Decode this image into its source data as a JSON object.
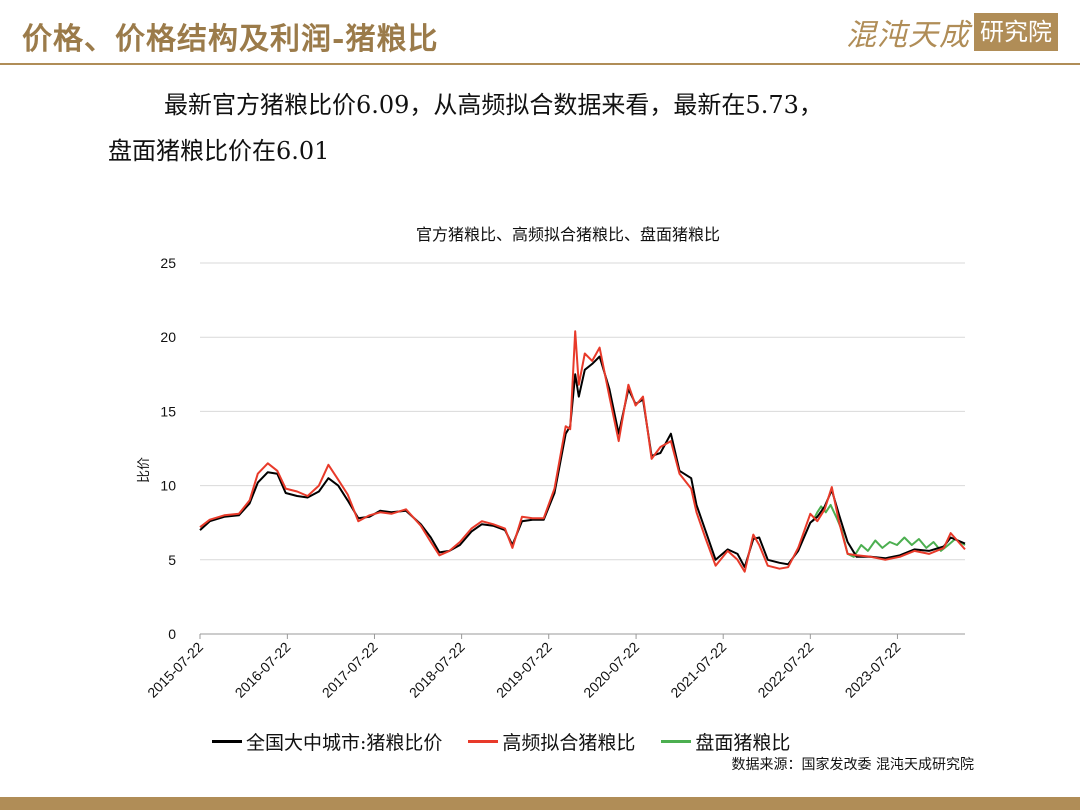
{
  "header": {
    "title": "价格、价格结构及利润-猪粮比",
    "logo_text": "混沌天成",
    "logo_box": "研究院"
  },
  "summary": {
    "line1": "最新官方猪粮比价6.09，从高频拟合数据来看，最新在5.73，",
    "line2": "盘面猪粮比价在6.01"
  },
  "source": "数据来源：国家发改委 混沌天成研究院",
  "colors": {
    "official": "#000000",
    "fitted": "#e83a2a",
    "futures": "#4caf50",
    "accent": "#b08d57"
  },
  "chart_data": {
    "type": "line",
    "title": "官方猪粮比、高频拟合猪粮比、盘面猪粮比",
    "ylabel": "比价",
    "xlabel": "",
    "ylim": [
      0,
      25
    ],
    "yticks": [
      0,
      5,
      10,
      15,
      20,
      25
    ],
    "xticks": [
      "2015-07-22",
      "2016-07-22",
      "2017-07-22",
      "2018-07-22",
      "2019-07-22",
      "2020-07-22",
      "2021-07-22",
      "2022-07-22",
      "2023-07-22"
    ],
    "xrange": [
      "2015-07-22",
      "2024-04-30"
    ],
    "legend_position": "bottom",
    "series": [
      {
        "name": "全国大中城市:猪粮比价",
        "color": "#000000",
        "points": [
          [
            "2015-07-22",
            7.0
          ],
          [
            "2015-09-01",
            7.6
          ],
          [
            "2015-11-01",
            7.9
          ],
          [
            "2016-01-01",
            8.0
          ],
          [
            "2016-02-15",
            8.8
          ],
          [
            "2016-03-20",
            10.2
          ],
          [
            "2016-05-01",
            10.9
          ],
          [
            "2016-06-10",
            10.8
          ],
          [
            "2016-07-15",
            9.5
          ],
          [
            "2016-09-01",
            9.3
          ],
          [
            "2016-10-15",
            9.2
          ],
          [
            "2016-12-01",
            9.6
          ],
          [
            "2017-01-10",
            10.5
          ],
          [
            "2017-02-20",
            10.0
          ],
          [
            "2017-04-01",
            9.0
          ],
          [
            "2017-05-15",
            7.8
          ],
          [
            "2017-07-01",
            7.9
          ],
          [
            "2017-08-15",
            8.3
          ],
          [
            "2017-10-01",
            8.2
          ],
          [
            "2017-12-01",
            8.3
          ],
          [
            "2018-02-01",
            7.4
          ],
          [
            "2018-03-15",
            6.5
          ],
          [
            "2018-04-20",
            5.5
          ],
          [
            "2018-06-01",
            5.6
          ],
          [
            "2018-07-15",
            6.0
          ],
          [
            "2018-09-01",
            6.9
          ],
          [
            "2018-10-15",
            7.4
          ],
          [
            "2018-12-01",
            7.3
          ],
          [
            "2019-01-20",
            7.0
          ],
          [
            "2019-02-20",
            6.0
          ],
          [
            "2019-04-01",
            7.6
          ],
          [
            "2019-05-15",
            7.7
          ],
          [
            "2019-07-01",
            7.7
          ],
          [
            "2019-08-15",
            9.5
          ],
          [
            "2019-10-01",
            13.5
          ],
          [
            "2019-10-20",
            14.0
          ],
          [
            "2019-11-10",
            17.5
          ],
          [
            "2019-11-25",
            16.0
          ],
          [
            "2019-12-20",
            17.8
          ],
          [
            "2020-01-20",
            18.2
          ],
          [
            "2020-02-20",
            18.7
          ],
          [
            "2020-04-01",
            16.5
          ],
          [
            "2020-05-10",
            13.5
          ],
          [
            "2020-06-20",
            16.5
          ],
          [
            "2020-07-20",
            15.5
          ],
          [
            "2020-08-20",
            15.8
          ],
          [
            "2020-09-25",
            12.0
          ],
          [
            "2020-11-01",
            12.2
          ],
          [
            "2020-12-15",
            13.5
          ],
          [
            "2021-01-20",
            11.0
          ],
          [
            "2021-03-10",
            10.5
          ],
          [
            "2021-04-01",
            8.7
          ],
          [
            "2021-05-10",
            6.9
          ],
          [
            "2021-06-20",
            5.0
          ],
          [
            "2021-08-10",
            5.7
          ],
          [
            "2021-09-20",
            5.4
          ],
          [
            "2021-10-20",
            4.5
          ],
          [
            "2021-11-25",
            6.4
          ],
          [
            "2021-12-20",
            6.5
          ],
          [
            "2022-01-25",
            5.0
          ],
          [
            "2022-03-15",
            4.8
          ],
          [
            "2022-04-20",
            4.7
          ],
          [
            "2022-06-01",
            5.6
          ],
          [
            "2022-07-22",
            7.5
          ],
          [
            "2022-08-20",
            7.9
          ],
          [
            "2022-09-20",
            8.6
          ],
          [
            "2022-10-20",
            9.7
          ],
          [
            "2022-11-20",
            8.0
          ],
          [
            "2022-12-25",
            6.2
          ],
          [
            "2023-02-01",
            5.2
          ],
          [
            "2023-04-01",
            5.2
          ],
          [
            "2023-06-01",
            5.1
          ],
          [
            "2023-08-01",
            5.3
          ],
          [
            "2023-10-01",
            5.7
          ],
          [
            "2023-12-01",
            5.6
          ],
          [
            "2024-02-01",
            5.9
          ],
          [
            "2024-03-01",
            6.5
          ],
          [
            "2024-04-30",
            6.1
          ]
        ]
      },
      {
        "name": "高频拟合猪粮比",
        "color": "#e83a2a",
        "points": [
          [
            "2015-07-22",
            7.2
          ],
          [
            "2015-09-01",
            7.7
          ],
          [
            "2015-11-01",
            8.0
          ],
          [
            "2016-01-01",
            8.1
          ],
          [
            "2016-02-15",
            9.0
          ],
          [
            "2016-03-20",
            10.8
          ],
          [
            "2016-05-01",
            11.5
          ],
          [
            "2016-06-10",
            11.0
          ],
          [
            "2016-07-15",
            9.8
          ],
          [
            "2016-09-01",
            9.6
          ],
          [
            "2016-10-15",
            9.3
          ],
          [
            "2016-12-01",
            10.0
          ],
          [
            "2017-01-10",
            11.4
          ],
          [
            "2017-02-20",
            10.4
          ],
          [
            "2017-04-01",
            9.4
          ],
          [
            "2017-05-15",
            7.6
          ],
          [
            "2017-07-01",
            8.0
          ],
          [
            "2017-08-15",
            8.2
          ],
          [
            "2017-10-01",
            8.1
          ],
          [
            "2017-12-01",
            8.4
          ],
          [
            "2018-02-01",
            7.3
          ],
          [
            "2018-03-15",
            6.2
          ],
          [
            "2018-04-20",
            5.3
          ],
          [
            "2018-06-01",
            5.6
          ],
          [
            "2018-07-15",
            6.2
          ],
          [
            "2018-09-01",
            7.1
          ],
          [
            "2018-10-15",
            7.6
          ],
          [
            "2018-12-01",
            7.4
          ],
          [
            "2019-01-20",
            7.1
          ],
          [
            "2019-02-20",
            5.8
          ],
          [
            "2019-04-01",
            7.9
          ],
          [
            "2019-05-15",
            7.8
          ],
          [
            "2019-07-01",
            7.8
          ],
          [
            "2019-08-15",
            9.8
          ],
          [
            "2019-10-01",
            14.0
          ],
          [
            "2019-10-20",
            13.8
          ],
          [
            "2019-11-10",
            20.4
          ],
          [
            "2019-11-25",
            16.8
          ],
          [
            "2019-12-20",
            18.9
          ],
          [
            "2020-01-20",
            18.4
          ],
          [
            "2020-02-20",
            19.3
          ],
          [
            "2020-04-01",
            16.0
          ],
          [
            "2020-05-10",
            13.0
          ],
          [
            "2020-06-20",
            16.8
          ],
          [
            "2020-07-20",
            15.4
          ],
          [
            "2020-08-20",
            16.0
          ],
          [
            "2020-09-25",
            11.8
          ],
          [
            "2020-11-01",
            12.6
          ],
          [
            "2020-12-15",
            13.0
          ],
          [
            "2021-01-20",
            10.8
          ],
          [
            "2021-03-10",
            9.8
          ],
          [
            "2021-04-01",
            8.2
          ],
          [
            "2021-05-10",
            6.4
          ],
          [
            "2021-06-20",
            4.6
          ],
          [
            "2021-08-10",
            5.6
          ],
          [
            "2021-09-20",
            5.0
          ],
          [
            "2021-10-20",
            4.2
          ],
          [
            "2021-11-25",
            6.7
          ],
          [
            "2021-12-20",
            6.0
          ],
          [
            "2022-01-25",
            4.6
          ],
          [
            "2022-03-15",
            4.4
          ],
          [
            "2022-04-20",
            4.5
          ],
          [
            "2022-06-01",
            5.8
          ],
          [
            "2022-07-22",
            8.1
          ],
          [
            "2022-08-20",
            7.6
          ],
          [
            "2022-09-20",
            8.4
          ],
          [
            "2022-10-20",
            9.9
          ],
          [
            "2022-11-20",
            7.5
          ],
          [
            "2022-12-25",
            5.4
          ],
          [
            "2023-02-01",
            5.3
          ],
          [
            "2023-04-01",
            5.2
          ],
          [
            "2023-06-01",
            5.0
          ],
          [
            "2023-08-01",
            5.2
          ],
          [
            "2023-10-01",
            5.6
          ],
          [
            "2023-12-01",
            5.4
          ],
          [
            "2024-02-01",
            5.8
          ],
          [
            "2024-03-01",
            6.8
          ],
          [
            "2024-04-30",
            5.7
          ]
        ]
      },
      {
        "name": "盘面猪粮比",
        "color": "#4caf50",
        "points": [
          [
            "2022-08-01",
            7.6
          ],
          [
            "2022-08-20",
            8.2
          ],
          [
            "2022-09-05",
            8.6
          ],
          [
            "2022-09-25",
            8.2
          ],
          [
            "2022-10-15",
            8.7
          ],
          [
            "2022-11-10",
            7.8
          ],
          [
            "2022-12-01",
            7.0
          ],
          [
            "2022-12-25",
            5.4
          ],
          [
            "2023-01-20",
            5.2
          ],
          [
            "2023-02-20",
            6.0
          ],
          [
            "2023-03-20",
            5.6
          ],
          [
            "2023-04-20",
            6.3
          ],
          [
            "2023-05-20",
            5.8
          ],
          [
            "2023-06-20",
            6.2
          ],
          [
            "2023-07-20",
            6.0
          ],
          [
            "2023-08-20",
            6.5
          ],
          [
            "2023-09-20",
            6.0
          ],
          [
            "2023-10-20",
            6.4
          ],
          [
            "2023-11-20",
            5.8
          ],
          [
            "2023-12-20",
            6.2
          ],
          [
            "2024-01-20",
            5.6
          ],
          [
            "2024-02-20",
            6.0
          ],
          [
            "2024-03-20",
            6.4
          ],
          [
            "2024-04-30",
            6.0
          ]
        ]
      }
    ]
  }
}
